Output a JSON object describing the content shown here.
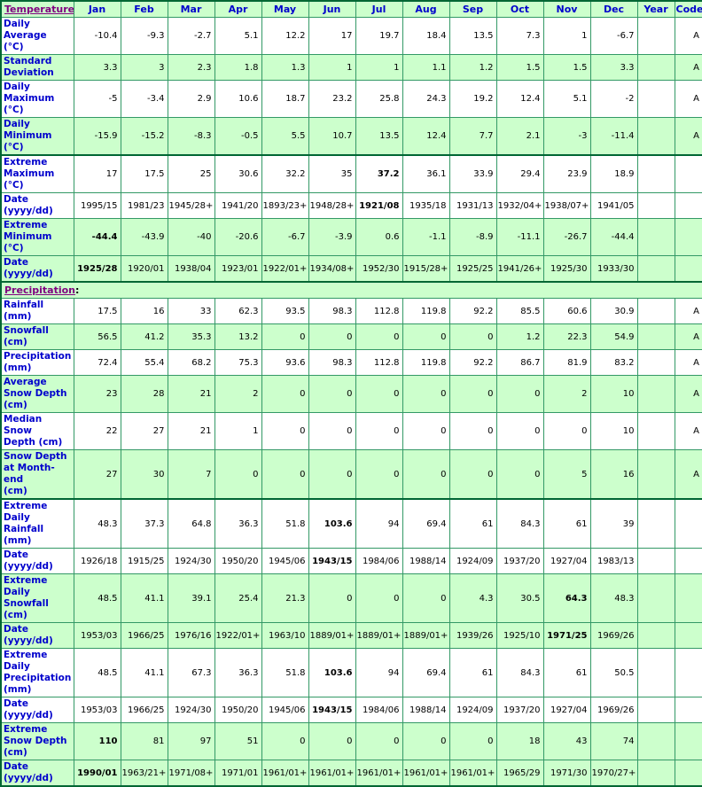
{
  "header": {
    "temperature_link": "Temperature",
    "temperature_colon": ":",
    "columns": [
      "Jan",
      "Feb",
      "Mar",
      "Apr",
      "May",
      "Jun",
      "Jul",
      "Aug",
      "Sep",
      "Oct",
      "Nov",
      "Dec",
      "Year",
      "Code"
    ]
  },
  "colors": {
    "cell_green": "#CCFFCC",
    "cell_white": "#FFFFFF",
    "grid_border_green": "#339966",
    "section_border_dark_green": "#006633",
    "label_blue": "#0000CC",
    "link_purple": "#800080",
    "value_black": "#000000"
  },
  "precipitation_section": {
    "link": "Precipitation",
    "colon": ":"
  },
  "rows": [
    {
      "type": "data",
      "shade": "w",
      "group_start": false,
      "label": "Daily Average\n(°C)",
      "values": [
        "-10.4",
        "-9.3",
        "-2.7",
        "5.1",
        "12.2",
        "17",
        "19.7",
        "18.4",
        "13.5",
        "7.3",
        "1",
        "-6.7"
      ],
      "year": "",
      "code": "A",
      "bold": []
    },
    {
      "type": "data",
      "shade": "g",
      "group_start": false,
      "label": "Standard\nDeviation",
      "values": [
        "3.3",
        "3",
        "2.3",
        "1.8",
        "1.3",
        "1",
        "1",
        "1.1",
        "1.2",
        "1.5",
        "1.5",
        "3.3"
      ],
      "year": "",
      "code": "A",
      "bold": []
    },
    {
      "type": "data",
      "shade": "w",
      "group_start": false,
      "label": "Daily\nMaximum\n(°C)",
      "values": [
        "-5",
        "-3.4",
        "2.9",
        "10.6",
        "18.7",
        "23.2",
        "25.8",
        "24.3",
        "19.2",
        "12.4",
        "5.1",
        "-2"
      ],
      "year": "",
      "code": "A",
      "bold": []
    },
    {
      "type": "data",
      "shade": "g",
      "group_start": false,
      "label": "Daily\nMinimum\n(°C)",
      "values": [
        "-15.9",
        "-15.2",
        "-8.3",
        "-0.5",
        "5.5",
        "10.7",
        "13.5",
        "12.4",
        "7.7",
        "2.1",
        "-3",
        "-11.4"
      ],
      "year": "",
      "code": "A",
      "bold": []
    },
    {
      "type": "data",
      "shade": "w",
      "group_start": true,
      "label": "Extreme\nMaximum\n(°C)",
      "values": [
        "17",
        "17.5",
        "25",
        "30.6",
        "32.2",
        "35",
        "37.2",
        "36.1",
        "33.9",
        "29.4",
        "23.9",
        "18.9"
      ],
      "year": "",
      "code": "",
      "bold": [
        6
      ]
    },
    {
      "type": "data",
      "shade": "w",
      "group_start": false,
      "label": "Date\n(yyyy/dd)",
      "values": [
        "1995/15",
        "1981/23",
        "1945/28+",
        "1941/20",
        "1893/23+",
        "1948/28+",
        "1921/08",
        "1935/18",
        "1931/13",
        "1932/04+",
        "1938/07+",
        "1941/05"
      ],
      "year": "",
      "code": "",
      "bold": [
        6
      ]
    },
    {
      "type": "data",
      "shade": "g",
      "group_start": false,
      "label": "Extreme\nMinimum\n(°C)",
      "values": [
        "-44.4",
        "-43.9",
        "-40",
        "-20.6",
        "-6.7",
        "-3.9",
        "0.6",
        "-1.1",
        "-8.9",
        "-11.1",
        "-26.7",
        "-44.4"
      ],
      "year": "",
      "code": "",
      "bold": [
        0
      ]
    },
    {
      "type": "data",
      "shade": "g",
      "group_start": false,
      "label": "Date\n(yyyy/dd)",
      "values": [
        "1925/28",
        "1920/01",
        "1938/04",
        "1923/01",
        "1922/01+",
        "1934/08+",
        "1952/30",
        "1915/28+",
        "1925/25",
        "1941/26+",
        "1925/30",
        "1933/30"
      ],
      "year": "",
      "code": "",
      "bold": [
        0
      ]
    },
    {
      "type": "section",
      "shade": "g",
      "group_start": true
    },
    {
      "type": "data",
      "shade": "w",
      "group_start": false,
      "label": "Rainfall (mm)",
      "values": [
        "17.5",
        "16",
        "33",
        "62.3",
        "93.5",
        "98.3",
        "112.8",
        "119.8",
        "92.2",
        "85.5",
        "60.6",
        "30.9"
      ],
      "year": "",
      "code": "A",
      "bold": []
    },
    {
      "type": "data",
      "shade": "g",
      "group_start": false,
      "label": "Snowfall\n(cm)",
      "values": [
        "56.5",
        "41.2",
        "35.3",
        "13.2",
        "0",
        "0",
        "0",
        "0",
        "0",
        "1.2",
        "22.3",
        "54.9"
      ],
      "year": "",
      "code": "A",
      "bold": []
    },
    {
      "type": "data",
      "shade": "w",
      "group_start": false,
      "label": "Precipitation\n(mm)",
      "values": [
        "72.4",
        "55.4",
        "68.2",
        "75.3",
        "93.6",
        "98.3",
        "112.8",
        "119.8",
        "92.2",
        "86.7",
        "81.9",
        "83.2"
      ],
      "year": "",
      "code": "A",
      "bold": []
    },
    {
      "type": "data",
      "shade": "g",
      "group_start": false,
      "label": "Average\nSnow Depth\n(cm)",
      "values": [
        "23",
        "28",
        "21",
        "2",
        "0",
        "0",
        "0",
        "0",
        "0",
        "0",
        "2",
        "10"
      ],
      "year": "",
      "code": "A",
      "bold": []
    },
    {
      "type": "data",
      "shade": "w",
      "group_start": false,
      "label": "Median Snow\nDepth (cm)",
      "values": [
        "22",
        "27",
        "21",
        "1",
        "0",
        "0",
        "0",
        "0",
        "0",
        "0",
        "0",
        "10"
      ],
      "year": "",
      "code": "A",
      "bold": []
    },
    {
      "type": "data",
      "shade": "g",
      "group_start": false,
      "label": "Snow Depth\nat Month-end\n(cm)",
      "values": [
        "27",
        "30",
        "7",
        "0",
        "0",
        "0",
        "0",
        "0",
        "0",
        "0",
        "5",
        "16"
      ],
      "year": "",
      "code": "A",
      "bold": []
    },
    {
      "type": "data",
      "shade": "w",
      "group_start": true,
      "label": "Extreme Daily\nRainfall (mm)",
      "values": [
        "48.3",
        "37.3",
        "64.8",
        "36.3",
        "51.8",
        "103.6",
        "94",
        "69.4",
        "61",
        "84.3",
        "61",
        "39"
      ],
      "year": "",
      "code": "",
      "bold": [
        5
      ]
    },
    {
      "type": "data",
      "shade": "w",
      "group_start": false,
      "label": "Date\n(yyyy/dd)",
      "values": [
        "1926/18",
        "1915/25",
        "1924/30",
        "1950/20",
        "1945/06",
        "1943/15",
        "1984/06",
        "1988/14",
        "1924/09",
        "1937/20",
        "1927/04",
        "1983/13"
      ],
      "year": "",
      "code": "",
      "bold": [
        5
      ]
    },
    {
      "type": "data",
      "shade": "g",
      "group_start": false,
      "label": "Extreme Daily\nSnowfall\n(cm)",
      "values": [
        "48.5",
        "41.1",
        "39.1",
        "25.4",
        "21.3",
        "0",
        "0",
        "0",
        "4.3",
        "30.5",
        "64.3",
        "48.3"
      ],
      "year": "",
      "code": "",
      "bold": [
        10
      ]
    },
    {
      "type": "data",
      "shade": "g",
      "group_start": false,
      "label": "Date\n(yyyy/dd)",
      "values": [
        "1953/03",
        "1966/25",
        "1976/16",
        "1922/01+",
        "1963/10",
        "1889/01+",
        "1889/01+",
        "1889/01+",
        "1939/26",
        "1925/10",
        "1971/25",
        "1969/26"
      ],
      "year": "",
      "code": "",
      "bold": [
        10
      ]
    },
    {
      "type": "data",
      "shade": "w",
      "group_start": false,
      "label": "Extreme Daily\nPrecipitation\n(mm)",
      "values": [
        "48.5",
        "41.1",
        "67.3",
        "36.3",
        "51.8",
        "103.6",
        "94",
        "69.4",
        "61",
        "84.3",
        "61",
        "50.5"
      ],
      "year": "",
      "code": "",
      "bold": [
        5
      ]
    },
    {
      "type": "data",
      "shade": "w",
      "group_start": false,
      "label": "Date\n(yyyy/dd)",
      "values": [
        "1953/03",
        "1966/25",
        "1924/30",
        "1950/20",
        "1945/06",
        "1943/15",
        "1984/06",
        "1988/14",
        "1924/09",
        "1937/20",
        "1927/04",
        "1969/26"
      ],
      "year": "",
      "code": "",
      "bold": [
        5
      ]
    },
    {
      "type": "data",
      "shade": "g",
      "group_start": false,
      "label": "Extreme\nSnow Depth\n(cm)",
      "values": [
        "110",
        "81",
        "97",
        "51",
        "0",
        "0",
        "0",
        "0",
        "0",
        "18",
        "43",
        "74"
      ],
      "year": "",
      "code": "",
      "bold": [
        0
      ]
    },
    {
      "type": "data",
      "shade": "g",
      "group_start": false,
      "label": "Date\n(yyyy/dd)",
      "values": [
        "1990/01",
        "1963/21+",
        "1971/08+",
        "1971/01",
        "1961/01+",
        "1961/01+",
        "1961/01+",
        "1961/01+",
        "1961/01+",
        "1965/29",
        "1971/30",
        "1970/27+"
      ],
      "year": "",
      "code": "",
      "bold": [
        0
      ]
    }
  ]
}
